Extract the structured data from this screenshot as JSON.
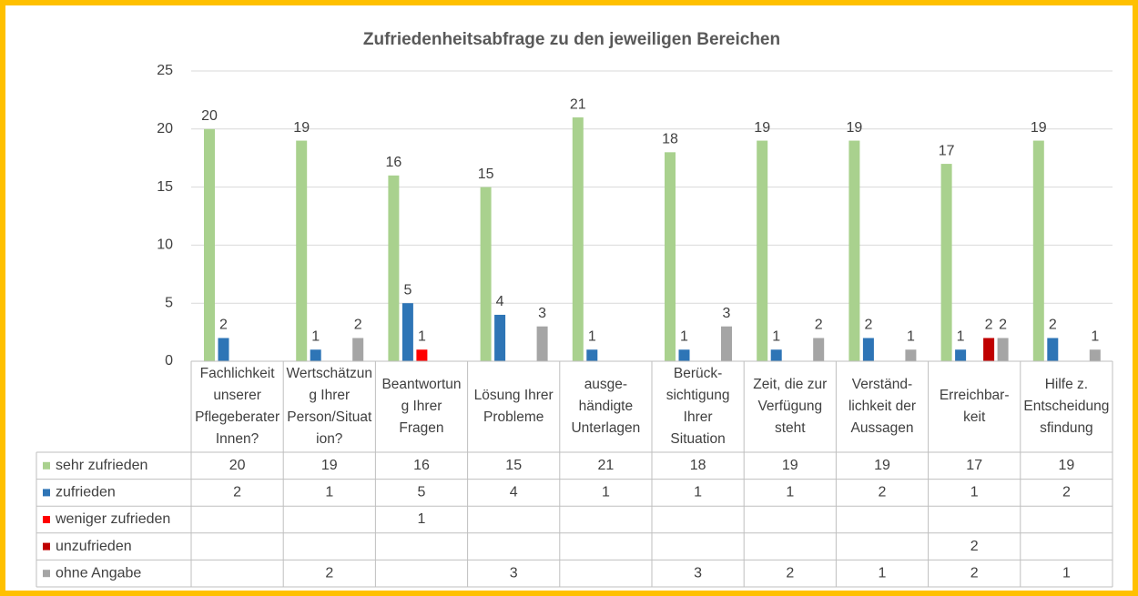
{
  "chart_data": {
    "type": "bar",
    "title": "Zufriedenheitsabfrage zu den jeweiligen Bereichen",
    "categories": [
      "Fachlichkeit unserer PflegeberaterInnen?",
      "Wertschätzung Ihrer Person/Situation?",
      "Beantwortung Ihrer Fragen",
      "Lösung Ihrer Probleme",
      "ausge-händigte Unterlagen",
      "Berück-sichtigung Ihrer Situation",
      "Zeit, die zur Verfügung steht",
      "Verständ-lichkeit der Aussagen",
      "Erreichbar-keit",
      "Hilfe z. Entscheidungsfindung"
    ],
    "series": [
      {
        "name": "sehr zufrieden",
        "color": "#a9d18e",
        "values": [
          20,
          19,
          16,
          15,
          21,
          18,
          19,
          19,
          17,
          19
        ]
      },
      {
        "name": "zufrieden",
        "color": "#2e75b6",
        "values": [
          2,
          1,
          5,
          4,
          1,
          1,
          1,
          2,
          1,
          2
        ]
      },
      {
        "name": "weniger zufrieden",
        "color": "#ff0000",
        "values": [
          null,
          null,
          1,
          null,
          null,
          null,
          null,
          null,
          null,
          null
        ]
      },
      {
        "name": "unzufrieden",
        "color": "#c00000",
        "values": [
          null,
          null,
          null,
          null,
          null,
          null,
          null,
          null,
          2,
          null
        ]
      },
      {
        "name": "ohne Angabe",
        "color": "#a5a5a5",
        "values": [
          null,
          2,
          null,
          3,
          null,
          3,
          2,
          1,
          2,
          1
        ]
      }
    ],
    "ylim": [
      0,
      25
    ],
    "yticks": [
      0,
      5,
      10,
      15,
      20,
      25
    ],
    "grid": true,
    "data_table": true
  }
}
